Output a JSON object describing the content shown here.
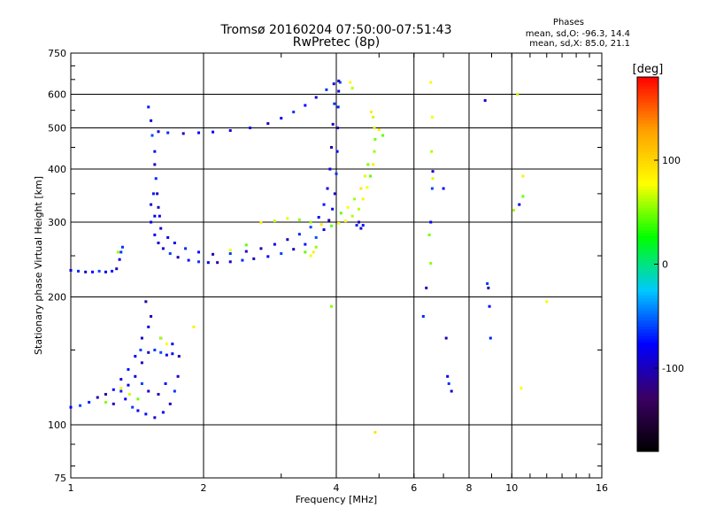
{
  "header": {
    "title": "Tromsø 20160204 07:50:00-07:51:43",
    "subtitle": "RwPretec (8p)"
  },
  "phase_info": {
    "heading": "Phases",
    "line_o": "mean, sd,O: -96.3, 14.4",
    "line_x": "mean, sd,X: 85.0, 21.1"
  },
  "chart_data": {
    "type": "scatter",
    "xlabel": "Frequency [MHz]",
    "ylabel": "Stationary phase Virtual Height [km]",
    "xscale": "log",
    "yscale": "log",
    "xlim": [
      1,
      16
    ],
    "ylim": [
      75,
      750
    ],
    "xticks": [
      1,
      2,
      4,
      6,
      8,
      10,
      16
    ],
    "xtick_labels": [
      "1",
      "2",
      "4",
      "6",
      "8",
      "10",
      "16"
    ],
    "yticks": [
      75,
      100,
      200,
      300,
      400,
      500,
      600,
      750
    ],
    "ytick_labels": [
      "75",
      "100",
      "200",
      "300",
      "400",
      "500",
      "600",
      "750"
    ],
    "x_gridlines": [
      2,
      4,
      6,
      8,
      10
    ],
    "y_gridlines": [
      100,
      200,
      300,
      400,
      500,
      600
    ],
    "colorbar": {
      "label": "[deg]",
      "ticks": [
        100,
        0,
        -100
      ],
      "tick_labels": [
        "100",
        "0",
        "-100"
      ],
      "range": [
        -180,
        180
      ],
      "colors": [
        "#000000",
        "#3c0064",
        "#0000ff",
        "#00c8ff",
        "#00ff00",
        "#ffff00",
        "#ffa000",
        "#ff0000"
      ]
    },
    "series": [
      {
        "points": [
          [
            1.0,
            231
          ],
          [
            1.04,
            230
          ],
          [
            1.08,
            229
          ],
          [
            1.12,
            229
          ],
          [
            1.16,
            230
          ],
          [
            1.2,
            229
          ],
          [
            1.24,
            230
          ],
          [
            1.27,
            233
          ],
          [
            1.29,
            245
          ],
          [
            1.3,
            255
          ],
          [
            1.31,
            262
          ],
          [
            1.52,
            300
          ],
          [
            1.55,
            280
          ],
          [
            1.58,
            268
          ],
          [
            1.62,
            260
          ],
          [
            1.68,
            253
          ],
          [
            1.75,
            248
          ],
          [
            1.85,
            244
          ],
          [
            1.95,
            242
          ],
          [
            2.05,
            241
          ],
          [
            2.15,
            241
          ],
          [
            2.3,
            242
          ],
          [
            2.45,
            244
          ],
          [
            2.6,
            246
          ],
          [
            2.8,
            249
          ],
          [
            3.0,
            253
          ],
          [
            3.2,
            259
          ],
          [
            3.4,
            266
          ],
          [
            3.6,
            276
          ],
          [
            3.75,
            288
          ],
          [
            3.85,
            303
          ],
          [
            3.92,
            322
          ],
          [
            3.97,
            350
          ],
          [
            4.0,
            390
          ],
          [
            4.02,
            440
          ],
          [
            4.03,
            500
          ],
          [
            4.04,
            560
          ],
          [
            4.05,
            610
          ],
          [
            4.08,
            640
          ],
          [
            1.55,
            310
          ],
          [
            1.6,
            290
          ],
          [
            1.66,
            276
          ],
          [
            1.72,
            268
          ],
          [
            1.82,
            260
          ],
          [
            1.95,
            255
          ],
          [
            2.1,
            252
          ],
          [
            2.3,
            253
          ],
          [
            2.5,
            256
          ],
          [
            2.7,
            260
          ],
          [
            2.9,
            266
          ],
          [
            3.1,
            273
          ],
          [
            3.3,
            281
          ],
          [
            3.5,
            292
          ],
          [
            3.65,
            308
          ],
          [
            3.75,
            330
          ],
          [
            3.82,
            360
          ],
          [
            3.87,
            400
          ],
          [
            3.9,
            450
          ],
          [
            3.93,
            510
          ],
          [
            3.96,
            570
          ],
          [
            1.58,
            490
          ],
          [
            1.66,
            487
          ],
          [
            1.8,
            485
          ],
          [
            1.95,
            487
          ],
          [
            2.1,
            489
          ],
          [
            2.3,
            493
          ],
          [
            2.55,
            500
          ],
          [
            2.8,
            512
          ],
          [
            3.0,
            527
          ],
          [
            3.2,
            545
          ],
          [
            3.4,
            565
          ],
          [
            3.6,
            590
          ],
          [
            3.8,
            615
          ],
          [
            3.95,
            635
          ],
          [
            4.05,
            645
          ],
          [
            1.5,
            560
          ],
          [
            1.52,
            520
          ],
          [
            1.53,
            480
          ],
          [
            1.55,
            440
          ],
          [
            1.55,
            410
          ],
          [
            1.56,
            380
          ],
          [
            1.57,
            350
          ],
          [
            1.58,
            325
          ],
          [
            1.59,
            310
          ],
          [
            1.52,
            330
          ],
          [
            1.54,
            350
          ],
          [
            1.0,
            110
          ],
          [
            1.05,
            111
          ],
          [
            1.1,
            113
          ],
          [
            1.15,
            116
          ],
          [
            1.2,
            118
          ],
          [
            1.25,
            121
          ],
          [
            1.3,
            120
          ],
          [
            1.35,
            124
          ],
          [
            1.4,
            130
          ],
          [
            1.45,
            140
          ],
          [
            1.5,
            148
          ],
          [
            1.55,
            150
          ],
          [
            1.6,
            148
          ],
          [
            1.65,
            146
          ],
          [
            1.7,
            147
          ],
          [
            1.45,
            160
          ],
          [
            1.5,
            170
          ],
          [
            1.48,
            195
          ],
          [
            1.52,
            180
          ],
          [
            1.6,
            160
          ],
          [
            1.38,
            110
          ],
          [
            1.42,
            108
          ],
          [
            1.48,
            106
          ],
          [
            1.55,
            104
          ],
          [
            1.62,
            107
          ],
          [
            1.68,
            112
          ],
          [
            1.72,
            120
          ],
          [
            1.75,
            130
          ],
          [
            1.76,
            145
          ],
          [
            1.7,
            155
          ],
          [
            1.3,
            128
          ],
          [
            1.35,
            135
          ],
          [
            1.4,
            145
          ],
          [
            1.44,
            150
          ],
          [
            1.58,
            118
          ],
          [
            1.64,
            125
          ],
          [
            1.5,
            120
          ],
          [
            1.45,
            125
          ],
          [
            1.33,
            115
          ],
          [
            1.25,
            112
          ],
          [
            4.45,
            295
          ],
          [
            4.55,
            290
          ],
          [
            4.5,
            300
          ],
          [
            4.6,
            295
          ],
          [
            6.3,
            180
          ],
          [
            6.4,
            210
          ],
          [
            6.55,
            300
          ],
          [
            6.6,
            360
          ],
          [
            6.62,
            395
          ],
          [
            7.0,
            360
          ],
          [
            7.1,
            160
          ],
          [
            7.15,
            130
          ],
          [
            7.2,
            125
          ],
          [
            7.3,
            120
          ],
          [
            8.7,
            580
          ],
          [
            8.8,
            215
          ],
          [
            8.85,
            210
          ],
          [
            8.9,
            190
          ],
          [
            8.95,
            160
          ],
          [
            10.4,
            330
          ]
        ]
      },
      {
        "points": [
          [
            2.7,
            299
          ],
          [
            2.9,
            302
          ],
          [
            3.1,
            306
          ],
          [
            3.3,
            304
          ],
          [
            3.5,
            300
          ],
          [
            3.7,
            296
          ],
          [
            3.9,
            294
          ],
          [
            4.05,
            298
          ],
          [
            4.2,
            302
          ],
          [
            4.35,
            310
          ],
          [
            4.5,
            322
          ],
          [
            4.6,
            340
          ],
          [
            4.7,
            362
          ],
          [
            4.78,
            385
          ],
          [
            4.85,
            410
          ],
          [
            4.88,
            440
          ],
          [
            4.9,
            470
          ],
          [
            4.88,
            500
          ],
          [
            4.85,
            530
          ],
          [
            4.8,
            545
          ],
          [
            4.1,
            315
          ],
          [
            4.25,
            325
          ],
          [
            4.4,
            340
          ],
          [
            4.55,
            360
          ],
          [
            4.65,
            385
          ],
          [
            4.72,
            410
          ],
          [
            4.3,
            640
          ],
          [
            4.35,
            620
          ],
          [
            3.4,
            255
          ],
          [
            3.5,
            250
          ],
          [
            3.55,
            255
          ],
          [
            3.6,
            262
          ],
          [
            2.3,
            258
          ],
          [
            2.5,
            265
          ],
          [
            1.6,
            160
          ],
          [
            1.65,
            155
          ],
          [
            1.42,
            115
          ],
          [
            1.36,
            118
          ],
          [
            1.3,
            122
          ],
          [
            1.2,
            113
          ],
          [
            1.28,
            255
          ],
          [
            5.0,
            495
          ],
          [
            5.1,
            480
          ],
          [
            6.6,
            530
          ],
          [
            6.55,
            640
          ],
          [
            6.58,
            440
          ],
          [
            6.62,
            380
          ],
          [
            6.5,
            280
          ],
          [
            6.55,
            240
          ],
          [
            10.6,
            385
          ],
          [
            10.6,
            345
          ],
          [
            10.3,
            600
          ],
          [
            10.1,
            320
          ],
          [
            10.5,
            122
          ],
          [
            12.0,
            195
          ],
          [
            4.9,
            96
          ],
          [
            1.9,
            170
          ],
          [
            3.9,
            190
          ]
        ]
      }
    ]
  }
}
